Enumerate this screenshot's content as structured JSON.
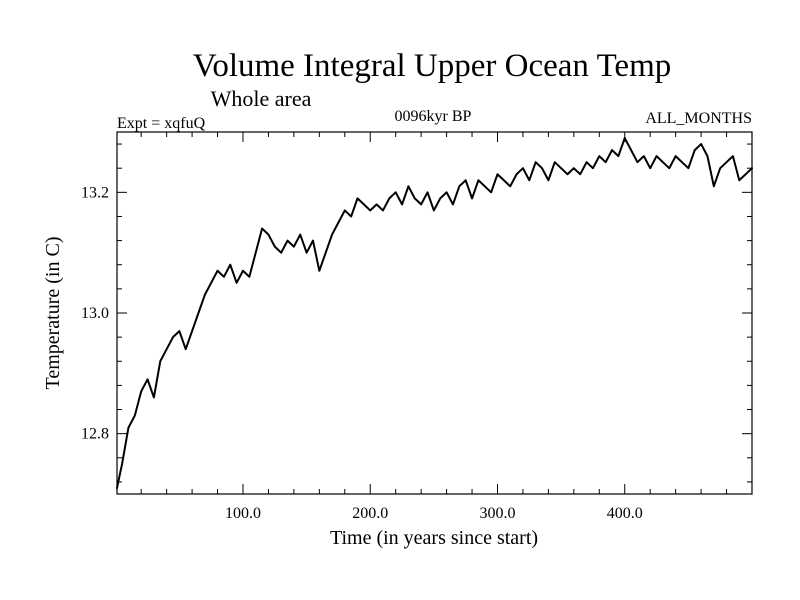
{
  "chart_data": {
    "type": "line",
    "title": "Volume Integral Upper Ocean Temp",
    "subtitle": "Whole area",
    "annotations": {
      "left": "Expt = xqfuQ",
      "center": "0096kyr BP",
      "right": "ALL_MONTHS"
    },
    "xlabel": "Time (in years since start)",
    "ylabel": "Temperature (in C)",
    "xlim": [
      1,
      500
    ],
    "ylim": [
      12.7,
      13.3
    ],
    "x_ticks": [
      {
        "value": 100,
        "label": "100.0"
      },
      {
        "value": 200,
        "label": "200.0"
      },
      {
        "value": 300,
        "label": "300.0"
      },
      {
        "value": 400,
        "label": "400.0"
      }
    ],
    "y_ticks": [
      {
        "value": 12.8,
        "label": "12.8"
      },
      {
        "value": 13.0,
        "label": "13.0"
      },
      {
        "value": 13.2,
        "label": "13.2"
      }
    ],
    "grid": false,
    "series": [
      {
        "name": "Volume Integral Upper Ocean Temp",
        "x": [
          1,
          5,
          10,
          15,
          20,
          25,
          30,
          35,
          40,
          45,
          50,
          55,
          60,
          65,
          70,
          75,
          80,
          85,
          90,
          95,
          100,
          105,
          110,
          115,
          120,
          125,
          130,
          135,
          140,
          145,
          150,
          155,
          160,
          165,
          170,
          175,
          180,
          185,
          190,
          195,
          200,
          205,
          210,
          215,
          220,
          225,
          230,
          235,
          240,
          245,
          250,
          255,
          260,
          265,
          270,
          275,
          280,
          285,
          290,
          295,
          300,
          305,
          310,
          315,
          320,
          325,
          330,
          335,
          340,
          345,
          350,
          355,
          360,
          365,
          370,
          375,
          380,
          385,
          390,
          395,
          400,
          405,
          410,
          415,
          420,
          425,
          430,
          435,
          440,
          445,
          450,
          455,
          460,
          465,
          470,
          475,
          480,
          485,
          490,
          495,
          500
        ],
        "values": [
          12.71,
          12.75,
          12.81,
          12.83,
          12.87,
          12.89,
          12.86,
          12.92,
          12.94,
          12.96,
          12.97,
          12.94,
          12.97,
          13.0,
          13.03,
          13.05,
          13.07,
          13.06,
          13.08,
          13.05,
          13.07,
          13.06,
          13.1,
          13.14,
          13.13,
          13.11,
          13.1,
          13.12,
          13.11,
          13.13,
          13.1,
          13.12,
          13.07,
          13.1,
          13.13,
          13.15,
          13.17,
          13.16,
          13.19,
          13.18,
          13.17,
          13.18,
          13.17,
          13.19,
          13.2,
          13.18,
          13.21,
          13.19,
          13.18,
          13.2,
          13.17,
          13.19,
          13.2,
          13.18,
          13.21,
          13.22,
          13.19,
          13.22,
          13.21,
          13.2,
          13.23,
          13.22,
          13.21,
          13.23,
          13.24,
          13.22,
          13.25,
          13.24,
          13.22,
          13.25,
          13.24,
          13.23,
          13.24,
          13.23,
          13.25,
          13.24,
          13.26,
          13.25,
          13.27,
          13.26,
          13.29,
          13.27,
          13.25,
          13.26,
          13.24,
          13.26,
          13.25,
          13.24,
          13.26,
          13.25,
          13.24,
          13.27,
          13.28,
          13.26,
          13.21,
          13.24,
          13.25,
          13.26,
          13.22,
          13.23,
          13.24
        ]
      }
    ]
  }
}
